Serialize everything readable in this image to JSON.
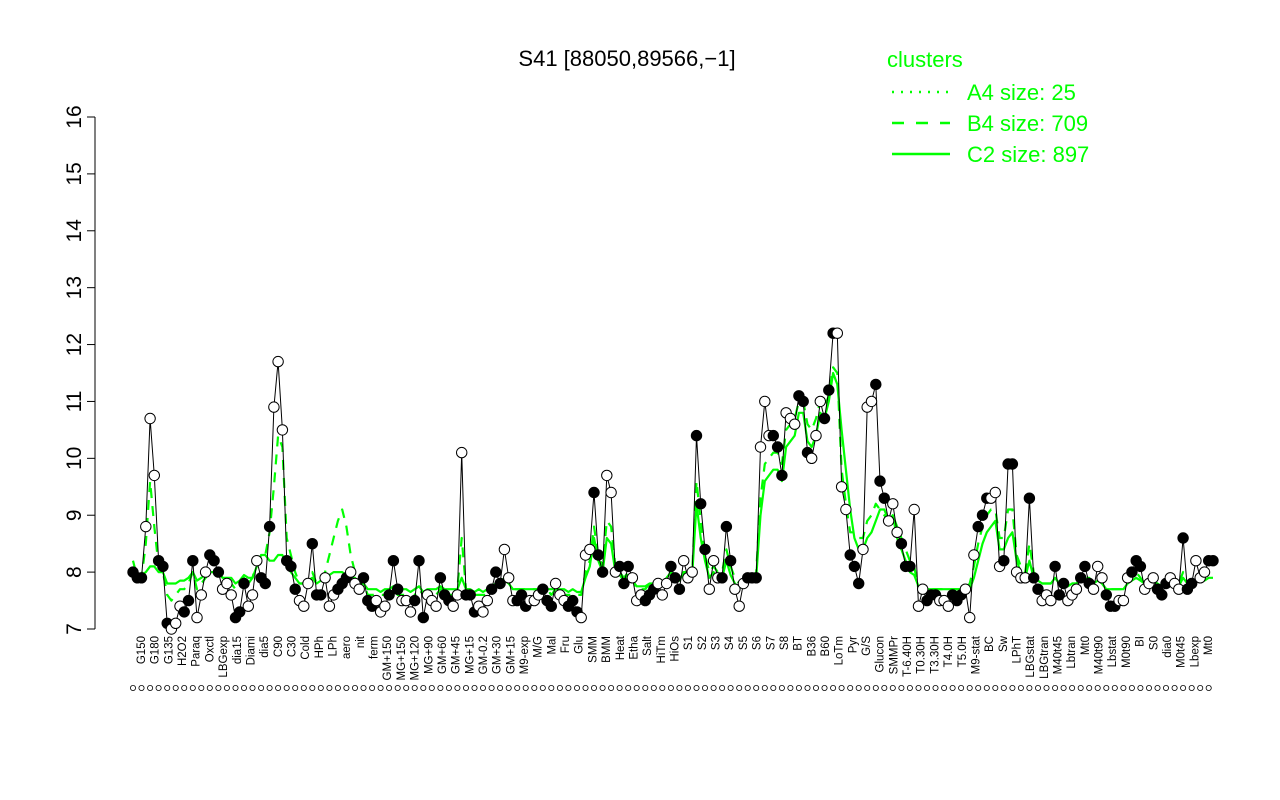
{
  "chart_data": {
    "type": "line",
    "title": "S41 [88050,89566,−1]",
    "xlabel": "",
    "ylabel": "",
    "ylim": [
      7,
      16
    ],
    "yticks": [
      7,
      8,
      9,
      10,
      11,
      12,
      13,
      14,
      15,
      16
    ],
    "grid": false,
    "legend": {
      "title": "clusters",
      "placement": "top-right",
      "entries": [
        {
          "label": "A4 size: 25",
          "style": "dotted"
        },
        {
          "label": "B4 size: 709",
          "style": "dashed"
        },
        {
          "label": "C2 size: 897",
          "style": "solid"
        }
      ]
    },
    "colors": {
      "series": "#000000",
      "clusters": "#00ff00"
    },
    "tick_labels": [
      "G150",
      "G180",
      "G135",
      "H2O2",
      "Paraq",
      "Oxctl",
      "LBGexp",
      "dia15",
      "Diami",
      "dia5",
      "C90",
      "C30",
      "Cold",
      "HPh",
      "LPh",
      "aero",
      "nit",
      "ferm",
      "GM+150",
      "MG+150",
      "MG+120",
      "MG+90",
      "GM+60",
      "GM+45",
      "MG+15",
      "GM-0.2",
      "GM+30",
      "GM+15",
      "M9-exp",
      "M/G",
      "Mal",
      "Fru",
      "Glu",
      "SMM",
      "BMM",
      "Heat",
      "Etha",
      "Salt",
      "HiTm",
      "HiOs",
      "S1",
      "S2",
      "S3",
      "S4",
      "S5",
      "S6",
      "S7",
      "S8",
      "BT",
      "B36",
      "B60",
      "LoTm",
      "Pyr",
      "G/S",
      "Glucon",
      "SMMPr",
      "T-6.40H",
      "T0.30H",
      "T3.30H",
      "T4.0H",
      "T5.0H",
      "M9-stat",
      "BC",
      "Sw",
      "LPhT",
      "LBGstat",
      "LBGtran",
      "M40t45",
      "Lbtran",
      "Mt0",
      "M40t90",
      "Lbstat",
      "M0t90",
      "BI",
      "S0",
      "dia0",
      "M0t45",
      "Lbexp",
      "Mt0"
    ],
    "series": [
      {
        "name": "",
        "values": [
          8.0,
          7.9,
          7.9,
          8.8,
          10.7,
          9.7,
          8.2,
          8.1,
          7.1,
          7.0,
          7.1,
          7.4,
          7.3,
          7.5,
          8.2,
          7.2,
          7.6,
          8.0,
          8.3,
          8.2,
          8.0,
          7.7,
          7.8,
          7.6,
          7.2,
          7.3,
          7.8,
          7.4,
          7.6,
          8.2,
          7.9,
          7.8,
          8.8,
          10.9,
          11.7,
          10.5,
          8.2,
          8.1,
          7.7,
          7.5,
          7.4,
          7.8,
          8.5,
          7.6,
          7.6,
          7.9,
          7.4,
          7.6,
          7.7,
          7.8,
          7.9,
          8.0,
          7.8,
          7.7,
          7.9,
          7.5,
          7.4,
          7.5,
          7.3,
          7.4,
          7.6,
          8.2,
          7.7,
          7.5,
          7.5,
          7.3,
          7.5,
          8.2,
          7.2,
          7.6,
          7.5,
          7.4,
          7.9,
          7.6,
          7.5,
          7.4,
          7.6,
          10.1,
          7.6,
          7.6,
          7.3,
          7.4,
          7.3,
          7.5,
          7.7,
          8.0,
          7.8,
          8.4,
          7.9,
          7.5,
          7.5,
          7.6,
          7.4,
          7.5,
          7.5,
          7.6,
          7.7,
          7.5,
          7.4,
          7.8,
          7.6,
          7.5,
          7.4,
          7.5,
          7.3,
          7.2,
          8.3,
          8.4,
          9.4,
          8.3,
          8.0,
          9.7,
          9.4,
          8.0,
          8.1,
          7.8,
          8.1,
          7.9,
          7.5,
          7.6,
          7.5,
          7.6,
          7.7,
          7.8,
          7.6,
          7.8,
          8.1,
          7.9,
          7.7,
          8.2,
          7.9,
          8.0,
          10.4,
          9.2,
          8.4,
          7.7,
          8.2,
          7.9,
          7.9,
          8.8,
          8.2,
          7.7,
          7.4,
          7.8,
          7.9,
          7.9,
          7.9,
          10.2,
          11.0,
          10.4,
          10.4,
          10.2,
          9.7,
          10.8,
          10.7,
          10.6,
          11.1,
          11.0,
          10.1,
          10.0,
          10.4,
          11.0,
          10.7,
          11.2,
          12.2,
          12.2,
          9.5,
          9.1,
          8.3,
          8.1,
          7.8,
          8.4,
          10.9,
          11.0,
          11.3,
          9.6,
          9.3,
          8.9,
          9.2,
          8.7,
          8.5,
          8.1,
          8.1,
          9.1,
          7.4,
          7.7,
          7.5,
          7.6,
          7.6,
          7.5,
          7.5,
          7.4,
          7.6,
          7.5,
          7.6,
          7.7,
          7.2,
          8.3,
          8.8,
          9.0,
          9.3,
          9.3,
          9.4,
          8.1,
          8.2,
          9.9,
          9.9,
          8.0,
          7.9,
          7.9,
          9.3,
          7.9,
          7.7,
          7.5,
          7.6,
          7.5,
          8.1,
          7.6,
          7.8,
          7.5,
          7.6,
          7.7,
          7.9,
          8.1,
          7.8,
          7.7,
          8.1,
          7.9,
          7.6,
          7.4,
          7.4,
          7.5,
          7.5,
          7.9,
          8.0,
          8.2,
          8.1,
          7.7,
          7.8,
          7.9,
          7.7,
          7.6,
          7.8,
          7.9,
          7.8,
          7.7,
          8.6,
          7.7,
          7.8,
          8.2,
          7.9,
          8.0,
          8.2,
          8.2
        ]
      },
      {
        "name": "",
        "values": [
          8.2,
          7.9,
          7.9,
          8.5,
          9.6,
          8.8,
          8.1,
          8.0,
          7.6,
          7.5,
          7.6,
          7.7,
          7.7,
          7.8,
          8.0,
          7.7,
          7.8,
          7.9,
          8.0,
          8.0,
          8.0,
          7.9,
          7.9,
          7.8,
          7.7,
          7.7,
          7.9,
          7.8,
          7.9,
          8.2,
          8.3,
          8.3,
          8.7,
          9.5,
          10.4,
          10.2,
          8.6,
          8.3,
          8.0,
          7.8,
          7.8,
          7.9,
          8.0,
          7.8,
          7.9,
          8.0,
          8.3,
          8.6,
          8.9,
          9.1,
          8.8,
          8.3,
          8.0,
          7.8,
          7.8,
          7.6,
          7.6,
          7.6,
          7.6,
          7.6,
          7.6,
          7.7,
          7.6,
          7.6,
          7.6,
          7.5,
          7.6,
          7.7,
          7.6,
          7.6,
          7.6,
          7.6,
          7.7,
          7.7,
          7.6,
          7.6,
          7.7,
          8.6,
          7.7,
          7.7,
          7.6,
          7.6,
          7.6,
          7.6,
          7.7,
          7.8,
          7.8,
          7.9,
          7.8,
          7.7,
          7.7,
          7.7,
          7.7,
          7.7,
          7.7,
          7.7,
          7.7,
          7.7,
          7.6,
          7.7,
          7.7,
          7.6,
          7.6,
          7.6,
          7.6,
          7.6,
          8.0,
          8.2,
          8.8,
          8.3,
          8.1,
          8.9,
          8.8,
          8.1,
          8.0,
          7.9,
          8.0,
          7.9,
          7.7,
          7.7,
          7.7,
          7.8,
          7.8,
          7.8,
          7.8,
          7.9,
          8.0,
          7.9,
          7.9,
          8.0,
          8.0,
          8.0,
          9.6,
          8.9,
          8.3,
          8.0,
          8.1,
          8.0,
          8.0,
          8.4,
          8.1,
          7.9,
          7.8,
          7.9,
          7.9,
          7.9,
          8.0,
          9.3,
          9.9,
          10.0,
          10.1,
          10.1,
          9.9,
          10.5,
          10.6,
          10.7,
          11.0,
          11.0,
          10.6,
          10.5,
          10.7,
          11.0,
          10.9,
          11.1,
          11.6,
          11.5,
          9.8,
          9.2,
          8.7,
          8.7,
          8.6,
          8.6,
          8.9,
          9.0,
          9.2,
          9.1,
          9.0,
          8.9,
          9.0,
          8.8,
          8.6,
          8.4,
          8.2,
          8.1,
          7.7,
          7.7,
          7.7,
          7.7,
          7.7,
          7.7,
          7.7,
          7.7,
          7.7,
          7.7,
          7.7,
          7.7,
          7.8,
          8.1,
          8.5,
          8.8,
          9.0,
          9.1,
          9.1,
          8.6,
          8.6,
          9.1,
          9.1,
          8.3,
          8.1,
          8.0,
          8.5,
          8.0,
          7.9,
          7.8,
          7.8,
          7.8,
          7.9,
          7.8,
          7.8,
          7.8,
          7.8,
          7.8,
          7.9,
          7.9,
          7.9,
          7.8,
          7.9,
          7.8,
          7.7,
          7.7,
          7.7,
          7.7,
          7.7,
          7.8,
          7.9,
          8.0,
          7.9,
          7.8,
          7.8,
          7.9,
          7.8,
          7.8,
          7.8,
          7.8,
          7.8,
          7.8,
          8.0,
          7.8,
          7.8,
          7.9,
          7.9,
          7.9,
          8.0,
          8.0
        ]
      },
      {
        "name": "",
        "values": [
          8.0,
          7.95,
          7.95,
          8.0,
          8.1,
          8.1,
          8.0,
          8.0,
          7.8,
          7.8,
          7.8,
          7.85,
          7.85,
          7.9,
          8.0,
          7.85,
          7.9,
          7.95,
          8.0,
          8.0,
          8.0,
          7.9,
          7.9,
          7.9,
          7.8,
          7.85,
          7.95,
          7.9,
          7.9,
          8.1,
          8.3,
          8.3,
          8.2,
          8.2,
          8.3,
          8.3,
          8.1,
          8.0,
          7.9,
          7.8,
          7.8,
          7.85,
          7.9,
          7.8,
          7.85,
          7.95,
          7.95,
          8.0,
          8.0,
          8.0,
          7.95,
          7.9,
          7.9,
          7.8,
          7.8,
          7.7,
          7.7,
          7.7,
          7.65,
          7.7,
          7.7,
          7.75,
          7.7,
          7.7,
          7.7,
          7.65,
          7.7,
          7.75,
          7.65,
          7.7,
          7.7,
          7.7,
          7.75,
          7.7,
          7.7,
          7.7,
          7.7,
          7.9,
          7.7,
          7.7,
          7.65,
          7.7,
          7.65,
          7.7,
          7.75,
          7.8,
          7.8,
          7.85,
          7.8,
          7.7,
          7.7,
          7.7,
          7.7,
          7.7,
          7.7,
          7.7,
          7.7,
          7.7,
          7.7,
          7.7,
          7.7,
          7.7,
          7.65,
          7.7,
          7.65,
          7.65,
          7.9,
          8.1,
          8.6,
          8.2,
          8.0,
          8.6,
          8.5,
          8.0,
          7.95,
          7.85,
          7.95,
          7.85,
          7.75,
          7.75,
          7.75,
          7.8,
          7.8,
          7.8,
          7.8,
          7.9,
          8.0,
          7.9,
          7.85,
          8.0,
          7.95,
          7.95,
          9.2,
          8.6,
          8.2,
          7.9,
          8.0,
          7.9,
          7.9,
          8.2,
          7.95,
          7.8,
          7.7,
          7.85,
          7.85,
          7.85,
          7.9,
          9.0,
          9.6,
          9.7,
          9.8,
          9.8,
          9.6,
          10.2,
          10.3,
          10.4,
          10.8,
          10.8,
          10.3,
          10.2,
          10.4,
          10.8,
          10.7,
          11.0,
          11.5,
          11.3,
          10.5,
          9.8,
          9.1,
          8.6,
          8.4,
          8.4,
          8.6,
          8.7,
          8.9,
          9.1,
          9.1,
          8.9,
          9.0,
          8.6,
          8.4,
          8.2,
          8.0,
          7.95,
          7.75,
          7.7,
          7.7,
          7.7,
          7.7,
          7.7,
          7.7,
          7.7,
          7.7,
          7.7,
          7.7,
          7.7,
          7.7,
          7.9,
          8.2,
          8.5,
          8.7,
          8.8,
          8.9,
          8.4,
          8.4,
          8.6,
          8.7,
          8.2,
          8.0,
          7.9,
          8.2,
          7.9,
          7.85,
          7.8,
          7.8,
          7.8,
          7.9,
          7.8,
          7.8,
          7.75,
          7.8,
          7.8,
          7.85,
          7.9,
          7.85,
          7.8,
          7.85,
          7.8,
          7.7,
          7.7,
          7.7,
          7.7,
          7.7,
          7.8,
          7.85,
          7.9,
          7.85,
          7.8,
          7.8,
          7.85,
          7.8,
          7.75,
          7.8,
          7.8,
          7.8,
          7.75,
          7.9,
          7.8,
          7.8,
          7.85,
          7.85,
          7.85,
          7.9,
          7.9
        ]
      }
    ]
  }
}
